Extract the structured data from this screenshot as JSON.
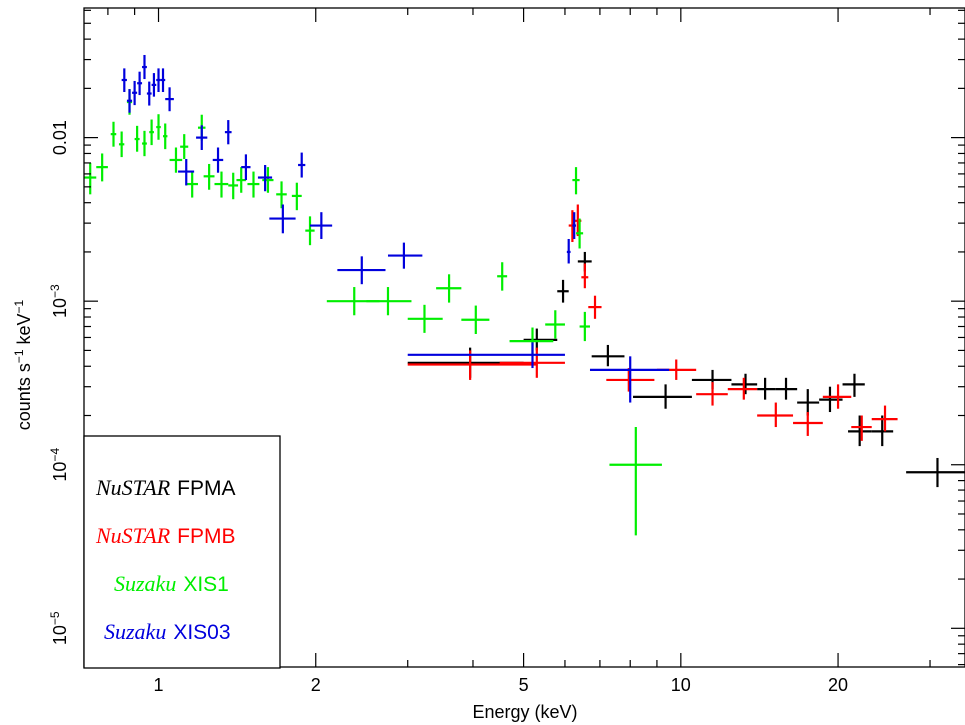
{
  "chart_data": {
    "type": "scatter",
    "xlabel": "Energy (keV)",
    "ylabel_parts": [
      "counts s",
      "−1",
      " keV",
      "−1"
    ],
    "xscale": "log",
    "yscale": "log",
    "xlim": [
      0.72,
      35.0
    ],
    "ylim": [
      5.8e-06,
      0.062
    ],
    "x_ticks": [
      1,
      2,
      5,
      10,
      20
    ],
    "x_tick_labels": [
      "1",
      "2",
      "5",
      "10",
      "20"
    ],
    "y_ticks": [
      {
        "value": 0.01,
        "base": "0.01",
        "exp": ""
      },
      {
        "value": 0.001,
        "base": "10",
        "exp": "−3"
      },
      {
        "value": 0.0001,
        "base": "10",
        "exp": "−4"
      },
      {
        "value": 1e-05,
        "base": "10",
        "exp": "−5"
      }
    ],
    "legend_position": "bottom-left",
    "series": [
      {
        "name_italic": "NuSTAR",
        "name_rest": "FPMA",
        "color": "#000000",
        "points": [
          {
            "x": 3.95,
            "xlo": 3.0,
            "xhi": 5.0,
            "y": 0.00042,
            "ylo": 0.00034,
            "yhi": 0.00052
          },
          {
            "x": 5.3,
            "xlo": 5.0,
            "xhi": 5.8,
            "y": 0.00058,
            "ylo": 0.0005,
            "yhi": 0.00068
          },
          {
            "x": 5.95,
            "xlo": 5.8,
            "xhi": 6.1,
            "y": 0.00115,
            "ylo": 0.00098,
            "yhi": 0.00135
          },
          {
            "x": 6.55,
            "xlo": 6.35,
            "xhi": 6.75,
            "y": 0.00175,
            "ylo": 0.00152,
            "yhi": 0.002
          },
          {
            "x": 7.25,
            "xlo": 6.75,
            "xhi": 7.8,
            "y": 0.00046,
            "ylo": 0.0004,
            "yhi": 0.00054
          },
          {
            "x": 9.35,
            "xlo": 8.1,
            "xhi": 10.5,
            "y": 0.00026,
            "ylo": 0.00022,
            "yhi": 0.00031
          },
          {
            "x": 11.5,
            "xlo": 10.5,
            "xhi": 12.5,
            "y": 0.00033,
            "ylo": 0.00029,
            "yhi": 0.00038
          },
          {
            "x": 13.3,
            "xlo": 12.5,
            "xhi": 14.0,
            "y": 0.00031,
            "ylo": 0.00027,
            "yhi": 0.00036
          },
          {
            "x": 14.5,
            "xlo": 14.0,
            "xhi": 15.2,
            "y": 0.00029,
            "ylo": 0.00025,
            "yhi": 0.00034
          },
          {
            "x": 15.9,
            "xlo": 15.2,
            "xhi": 16.7,
            "y": 0.00029,
            "ylo": 0.00025,
            "yhi": 0.00034
          },
          {
            "x": 17.5,
            "xlo": 16.7,
            "xhi": 18.4,
            "y": 0.00024,
            "ylo": 0.0002,
            "yhi": 0.00029
          },
          {
            "x": 19.3,
            "xlo": 18.4,
            "xhi": 20.4,
            "y": 0.00025,
            "ylo": 0.00021,
            "yhi": 0.0003
          },
          {
            "x": 21.5,
            "xlo": 20.4,
            "xhi": 22.5,
            "y": 0.00031,
            "ylo": 0.00026,
            "yhi": 0.00036
          },
          {
            "x": 22.0,
            "xlo": 20.9,
            "xhi": 23.2,
            "y": 0.00016,
            "ylo": 0.00013,
            "yhi": 0.0002
          },
          {
            "x": 24.3,
            "xlo": 23.2,
            "xhi": 25.5,
            "y": 0.00016,
            "ylo": 0.00013,
            "yhi": 0.0002
          },
          {
            "x": 31.0,
            "xlo": 27.0,
            "xhi": 35.0,
            "y": 9e-05,
            "ylo": 7.3e-05,
            "yhi": 0.00011
          }
        ]
      },
      {
        "name_italic": "NuSTAR",
        "name_rest": "FPMB",
        "color": "#ff0000",
        "points": [
          {
            "x": 3.95,
            "xlo": 3.0,
            "xhi": 5.3,
            "y": 0.00041,
            "ylo": 0.00033,
            "yhi": 0.0005
          },
          {
            "x": 5.3,
            "xlo": 4.5,
            "xhi": 6.0,
            "y": 0.00042,
            "ylo": 0.00034,
            "yhi": 0.00052
          },
          {
            "x": 6.2,
            "xlo": 6.1,
            "xhi": 6.3,
            "y": 0.0029,
            "ylo": 0.0023,
            "yhi": 0.0036
          },
          {
            "x": 6.35,
            "xlo": 6.25,
            "xhi": 6.45,
            "y": 0.0031,
            "ylo": 0.0025,
            "yhi": 0.0039
          },
          {
            "x": 6.55,
            "xlo": 6.45,
            "xhi": 6.65,
            "y": 0.0014,
            "ylo": 0.0012,
            "yhi": 0.0017
          },
          {
            "x": 6.85,
            "xlo": 6.65,
            "xhi": 7.05,
            "y": 0.00092,
            "ylo": 0.00078,
            "yhi": 0.00108
          },
          {
            "x": 7.95,
            "xlo": 7.2,
            "xhi": 8.9,
            "y": 0.00033,
            "ylo": 0.00028,
            "yhi": 0.00039
          },
          {
            "x": 9.8,
            "xlo": 9.0,
            "xhi": 10.7,
            "y": 0.00038,
            "ylo": 0.00033,
            "yhi": 0.00044
          },
          {
            "x": 11.5,
            "xlo": 10.7,
            "xhi": 12.3,
            "y": 0.00027,
            "ylo": 0.00023,
            "yhi": 0.00032
          },
          {
            "x": 13.2,
            "xlo": 12.3,
            "xhi": 14.0,
            "y": 0.00029,
            "ylo": 0.00025,
            "yhi": 0.00034
          },
          {
            "x": 15.2,
            "xlo": 14.0,
            "xhi": 16.4,
            "y": 0.0002,
            "ylo": 0.00017,
            "yhi": 0.00024
          },
          {
            "x": 17.5,
            "xlo": 16.4,
            "xhi": 18.7,
            "y": 0.00018,
            "ylo": 0.00015,
            "yhi": 0.00021
          },
          {
            "x": 20.0,
            "xlo": 18.7,
            "xhi": 21.2,
            "y": 0.00026,
            "ylo": 0.00022,
            "yhi": 0.00031
          },
          {
            "x": 22.2,
            "xlo": 21.2,
            "xhi": 23.2,
            "y": 0.00017,
            "ylo": 0.00014,
            "yhi": 0.0002
          },
          {
            "x": 24.6,
            "xlo": 23.2,
            "xhi": 26.0,
            "y": 0.00019,
            "ylo": 0.00016,
            "yhi": 0.00023
          }
        ]
      },
      {
        "name_italic": "Suzaku",
        "name_rest": "XIS1",
        "color": "#00ee00",
        "points": [
          {
            "x": 0.74,
            "xlo": 0.72,
            "xhi": 0.76,
            "y": 0.0057,
            "ylo": 0.0045,
            "yhi": 0.007
          },
          {
            "x": 0.78,
            "xlo": 0.76,
            "xhi": 0.8,
            "y": 0.0066,
            "ylo": 0.0054,
            "yhi": 0.008
          },
          {
            "x": 0.82,
            "xlo": 0.81,
            "xhi": 0.83,
            "y": 0.0105,
            "ylo": 0.0088,
            "yhi": 0.0125
          },
          {
            "x": 0.85,
            "xlo": 0.84,
            "xhi": 0.86,
            "y": 0.0091,
            "ylo": 0.0076,
            "yhi": 0.0109
          },
          {
            "x": 0.88,
            "xlo": 0.87,
            "xhi": 0.89,
            "y": 0.0165,
            "ylo": 0.0138,
            "yhi": 0.0198
          },
          {
            "x": 0.91,
            "xlo": 0.9,
            "xhi": 0.92,
            "y": 0.0098,
            "ylo": 0.0082,
            "yhi": 0.0118
          },
          {
            "x": 0.94,
            "xlo": 0.93,
            "xhi": 0.95,
            "y": 0.0092,
            "ylo": 0.0077,
            "yhi": 0.011
          },
          {
            "x": 0.97,
            "xlo": 0.96,
            "xhi": 0.98,
            "y": 0.0108,
            "ylo": 0.009,
            "yhi": 0.0129
          },
          {
            "x": 1.0,
            "xlo": 0.99,
            "xhi": 1.01,
            "y": 0.0116,
            "ylo": 0.0097,
            "yhi": 0.0139
          },
          {
            "x": 1.03,
            "xlo": 1.02,
            "xhi": 1.04,
            "y": 0.0102,
            "ylo": 0.0085,
            "yhi": 0.0122
          },
          {
            "x": 1.08,
            "xlo": 1.05,
            "xhi": 1.11,
            "y": 0.0073,
            "ylo": 0.0061,
            "yhi": 0.0087
          },
          {
            "x": 1.12,
            "xlo": 1.1,
            "xhi": 1.14,
            "y": 0.0088,
            "ylo": 0.0074,
            "yhi": 0.0105
          },
          {
            "x": 1.16,
            "xlo": 1.13,
            "xhi": 1.19,
            "y": 0.0052,
            "ylo": 0.0043,
            "yhi": 0.0062
          },
          {
            "x": 1.21,
            "xlo": 1.19,
            "xhi": 1.23,
            "y": 0.0115,
            "ylo": 0.0096,
            "yhi": 0.0138
          },
          {
            "x": 1.25,
            "xlo": 1.22,
            "xhi": 1.28,
            "y": 0.0058,
            "ylo": 0.0048,
            "yhi": 0.0069
          },
          {
            "x": 1.32,
            "xlo": 1.28,
            "xhi": 1.36,
            "y": 0.0052,
            "ylo": 0.0043,
            "yhi": 0.0062
          },
          {
            "x": 1.39,
            "xlo": 1.36,
            "xhi": 1.42,
            "y": 0.0051,
            "ylo": 0.0042,
            "yhi": 0.0061
          },
          {
            "x": 1.44,
            "xlo": 1.41,
            "xhi": 1.47,
            "y": 0.0055,
            "ylo": 0.0046,
            "yhi": 0.0066
          },
          {
            "x": 1.52,
            "xlo": 1.48,
            "xhi": 1.56,
            "y": 0.0052,
            "ylo": 0.0043,
            "yhi": 0.0062
          },
          {
            "x": 1.62,
            "xlo": 1.58,
            "xhi": 1.66,
            "y": 0.0055,
            "ylo": 0.0046,
            "yhi": 0.0066
          },
          {
            "x": 1.72,
            "xlo": 1.68,
            "xhi": 1.76,
            "y": 0.0045,
            "ylo": 0.0037,
            "yhi": 0.0054
          },
          {
            "x": 1.84,
            "xlo": 1.8,
            "xhi": 1.88,
            "y": 0.0044,
            "ylo": 0.0036,
            "yhi": 0.0053
          },
          {
            "x": 1.95,
            "xlo": 1.91,
            "xhi": 1.99,
            "y": 0.0027,
            "ylo": 0.0022,
            "yhi": 0.0033
          },
          {
            "x": 2.37,
            "xlo": 2.1,
            "xhi": 2.65,
            "y": 0.001,
            "ylo": 0.00082,
            "yhi": 0.00122
          },
          {
            "x": 2.75,
            "xlo": 2.5,
            "xhi": 3.05,
            "y": 0.001,
            "ylo": 0.00082,
            "yhi": 0.00122
          },
          {
            "x": 3.23,
            "xlo": 3.0,
            "xhi": 3.5,
            "y": 0.00078,
            "ylo": 0.00064,
            "yhi": 0.00095
          },
          {
            "x": 3.6,
            "xlo": 3.4,
            "xhi": 3.8,
            "y": 0.0012,
            "ylo": 0.00098,
            "yhi": 0.00146
          },
          {
            "x": 4.05,
            "xlo": 3.8,
            "xhi": 4.3,
            "y": 0.00077,
            "ylo": 0.00063,
            "yhi": 0.00094
          },
          {
            "x": 4.55,
            "xlo": 4.45,
            "xhi": 4.65,
            "y": 0.00142,
            "ylo": 0.00116,
            "yhi": 0.00173
          },
          {
            "x": 5.2,
            "xlo": 4.7,
            "xhi": 5.7,
            "y": 0.00057,
            "ylo": 0.00047,
            "yhi": 0.00069
          },
          {
            "x": 5.75,
            "xlo": 5.5,
            "xhi": 6.0,
            "y": 0.00072,
            "ylo": 0.00059,
            "yhi": 0.00088
          },
          {
            "x": 6.3,
            "xlo": 6.2,
            "xhi": 6.4,
            "y": 0.0055,
            "ylo": 0.0045,
            "yhi": 0.0066
          },
          {
            "x": 6.4,
            "xlo": 6.3,
            "xhi": 6.5,
            "y": 0.0026,
            "ylo": 0.0021,
            "yhi": 0.0032
          },
          {
            "x": 6.55,
            "xlo": 6.4,
            "xhi": 6.7,
            "y": 0.0007,
            "ylo": 0.00057,
            "yhi": 0.00086
          },
          {
            "x": 8.2,
            "xlo": 7.3,
            "xhi": 9.2,
            "y": 0.0001,
            "ylo": 3.7e-05,
            "yhi": 0.00017
          }
        ]
      },
      {
        "name_italic": "Suzaku",
        "name_rest": "XIS03",
        "color": "#0000dd",
        "points": [
          {
            "x": 0.86,
            "xlo": 0.85,
            "xhi": 0.87,
            "y": 0.0225,
            "ylo": 0.019,
            "yhi": 0.0265
          },
          {
            "x": 0.88,
            "xlo": 0.87,
            "xhi": 0.89,
            "y": 0.0168,
            "ylo": 0.0142,
            "yhi": 0.0198
          },
          {
            "x": 0.9,
            "xlo": 0.89,
            "xhi": 0.91,
            "y": 0.0188,
            "ylo": 0.0158,
            "yhi": 0.0222
          },
          {
            "x": 0.92,
            "xlo": 0.91,
            "xhi": 0.93,
            "y": 0.0215,
            "ylo": 0.0182,
            "yhi": 0.0253
          },
          {
            "x": 0.94,
            "xlo": 0.93,
            "xhi": 0.95,
            "y": 0.027,
            "ylo": 0.0228,
            "yhi": 0.032
          },
          {
            "x": 0.96,
            "xlo": 0.95,
            "xhi": 0.97,
            "y": 0.0186,
            "ylo": 0.0157,
            "yhi": 0.022
          },
          {
            "x": 0.98,
            "xlo": 0.97,
            "xhi": 0.99,
            "y": 0.021,
            "ylo": 0.0178,
            "yhi": 0.0248
          },
          {
            "x": 1.0,
            "xlo": 0.99,
            "xhi": 1.01,
            "y": 0.0225,
            "ylo": 0.019,
            "yhi": 0.0265
          },
          {
            "x": 1.02,
            "xlo": 1.01,
            "xhi": 1.03,
            "y": 0.0225,
            "ylo": 0.019,
            "yhi": 0.0265
          },
          {
            "x": 1.05,
            "xlo": 1.03,
            "xhi": 1.07,
            "y": 0.0172,
            "ylo": 0.0145,
            "yhi": 0.0203
          },
          {
            "x": 1.13,
            "xlo": 1.09,
            "xhi": 1.17,
            "y": 0.0062,
            "ylo": 0.0051,
            "yhi": 0.0074
          },
          {
            "x": 1.21,
            "xlo": 1.18,
            "xhi": 1.24,
            "y": 0.01,
            "ylo": 0.0084,
            "yhi": 0.0119
          },
          {
            "x": 1.3,
            "xlo": 1.27,
            "xhi": 1.33,
            "y": 0.0073,
            "ylo": 0.0061,
            "yhi": 0.0087
          },
          {
            "x": 1.36,
            "xlo": 1.34,
            "xhi": 1.38,
            "y": 0.0108,
            "ylo": 0.0091,
            "yhi": 0.0128
          },
          {
            "x": 1.47,
            "xlo": 1.44,
            "xhi": 1.5,
            "y": 0.0066,
            "ylo": 0.0055,
            "yhi": 0.0079
          },
          {
            "x": 1.6,
            "xlo": 1.55,
            "xhi": 1.65,
            "y": 0.0057,
            "ylo": 0.0047,
            "yhi": 0.0068
          },
          {
            "x": 1.73,
            "xlo": 1.63,
            "xhi": 1.83,
            "y": 0.0032,
            "ylo": 0.0026,
            "yhi": 0.0039
          },
          {
            "x": 1.88,
            "xlo": 1.85,
            "xhi": 1.91,
            "y": 0.0068,
            "ylo": 0.0057,
            "yhi": 0.0081
          },
          {
            "x": 2.05,
            "xlo": 1.95,
            "xhi": 2.15,
            "y": 0.0029,
            "ylo": 0.0024,
            "yhi": 0.0035
          },
          {
            "x": 2.45,
            "xlo": 2.2,
            "xhi": 2.72,
            "y": 0.00155,
            "ylo": 0.00127,
            "yhi": 0.00188
          },
          {
            "x": 2.95,
            "xlo": 2.75,
            "xhi": 3.2,
            "y": 0.0019,
            "ylo": 0.00158,
            "yhi": 0.00228
          },
          {
            "x": 5.2,
            "xlo": 3.0,
            "xhi": 6.0,
            "y": 0.00047,
            "ylo": 0.00039,
            "yhi": 0.00056
          },
          {
            "x": 6.1,
            "xlo": 6.05,
            "xhi": 6.15,
            "y": 0.002,
            "ylo": 0.0017,
            "yhi": 0.0024
          },
          {
            "x": 6.25,
            "xlo": 6.2,
            "xhi": 6.3,
            "y": 0.0029,
            "ylo": 0.0024,
            "yhi": 0.0035
          },
          {
            "x": 8.0,
            "xlo": 6.7,
            "xhi": 9.5,
            "y": 0.00038,
            "ylo": 0.00024,
            "yhi": 0.00046
          }
        ]
      }
    ]
  }
}
